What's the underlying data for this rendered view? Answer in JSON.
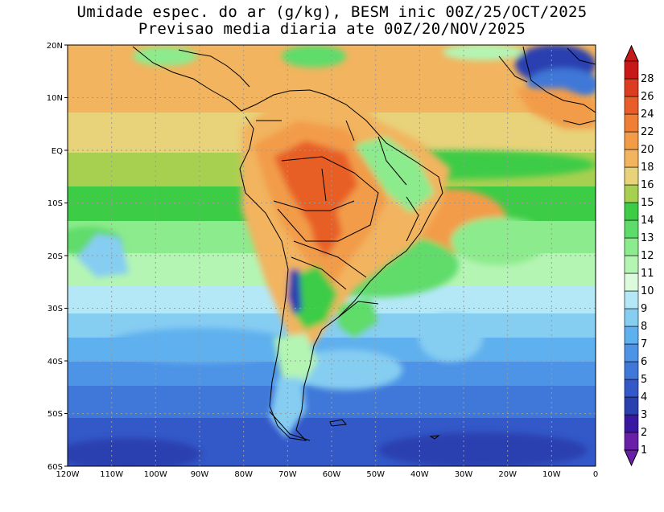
{
  "title": {
    "line1": "Umidade espec. do ar (g/kg), BESM inic 00Z/25/OCT/2025",
    "line2": "Previsao media diaria ate 00Z/20/NOV/2025"
  },
  "axes": {
    "lat_labels": [
      "20N",
      "10N",
      "EQ",
      "10S",
      "20S",
      "30S",
      "40S",
      "50S",
      "60S"
    ],
    "lon_labels": [
      "120W",
      "110W",
      "100W",
      "90W",
      "80W",
      "70W",
      "60W",
      "50W",
      "40W",
      "30W",
      "20W",
      "10W",
      "0"
    ]
  },
  "colorbar": {
    "levels": [
      "1",
      "2",
      "3",
      "4",
      "5",
      "6",
      "7",
      "8",
      "9",
      "10",
      "11",
      "12",
      "13",
      "14",
      "15",
      "16",
      "18",
      "20",
      "22",
      "24",
      "26",
      "28"
    ],
    "colors": [
      "#6a1fa8",
      "#3818a0",
      "#2a3fb0",
      "#3358c8",
      "#3f78d8",
      "#4d93e6",
      "#5fb0ee",
      "#86cdf2",
      "#b4e8f6",
      "#dcfadc",
      "#b4f5b4",
      "#8ceb8c",
      "#5edc6a",
      "#3dcc46",
      "#a8d050",
      "#e8d27a",
      "#f2b45e",
      "#f29c48",
      "#f07e34",
      "#e85e28",
      "#dc3c20",
      "#c81818"
    ]
  },
  "legend_colors": {
    "grid": "#9a9a9a",
    "coast": "#000000"
  }
}
